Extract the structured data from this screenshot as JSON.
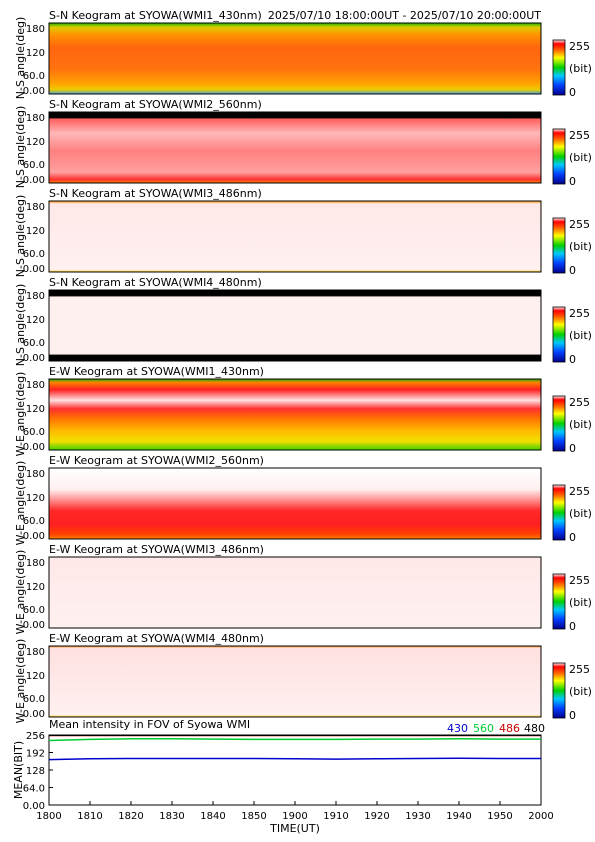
{
  "time_range": "2025/07/10 18:00:00UT - 2025/07/10 20:00:00UT",
  "colorbar": {
    "max_label": "255",
    "unit_label": "(bit)",
    "min_label": "0"
  },
  "panels": [
    {
      "title": "S-N Keogram at SYOWA(WMI1_430nm)",
      "ylabel": "N-S angle(deg)",
      "yticks": [
        "180",
        "120",
        "60.0",
        "0.00"
      ]
    },
    {
      "title": "S-N Keogram at SYOWA(WMI2_560nm)",
      "ylabel": "N-S angle(deg)",
      "yticks": [
        "180",
        "120",
        "60.0",
        "0.00"
      ]
    },
    {
      "title": "S-N Keogram at SYOWA(WMI3_486nm)",
      "ylabel": "N-S angle(deg)",
      "yticks": [
        "180",
        "120",
        "60.0",
        "0.00"
      ]
    },
    {
      "title": "S-N Keogram at SYOWA(WMI4_480nm)",
      "ylabel": "N-S angle(deg)",
      "yticks": [
        "180",
        "120",
        "60.0",
        "0.00"
      ]
    },
    {
      "title": "E-W Keogram at SYOWA(WMI1_430nm)",
      "ylabel": "W-E angle(deg)",
      "yticks": [
        "180",
        "120",
        "60.0",
        "0.00"
      ]
    },
    {
      "title": "E-W Keogram at SYOWA(WMI2_560nm)",
      "ylabel": "W-E angle(deg)",
      "yticks": [
        "180",
        "120",
        "60.0",
        "0.00"
      ]
    },
    {
      "title": "E-W Keogram at SYOWA(WMI3_486nm)",
      "ylabel": "W-E angle(deg)",
      "yticks": [
        "180",
        "120",
        "60.0",
        "0.00"
      ]
    },
    {
      "title": "E-W Keogram at SYOWA(WMI4_480nm)",
      "ylabel": "W-E angle(deg)",
      "yticks": [
        "180",
        "120",
        "60.0",
        "0.00"
      ]
    }
  ],
  "chart_data": {
    "type": "line",
    "title": "Mean intensity in FOV of Syowa WMI",
    "xlabel": "TIME(UT)",
    "ylabel": "MEAN(BIT)",
    "xticks": [
      "1800",
      "1810",
      "1820",
      "1830",
      "1840",
      "1850",
      "1900",
      "1910",
      "1920",
      "1930",
      "1940",
      "1950",
      "2000"
    ],
    "yticks": [
      "256",
      "192",
      "128",
      "64.0",
      "0.00"
    ],
    "ylim": [
      0,
      256
    ],
    "x_minutes_after_1800": [
      0,
      10,
      20,
      30,
      40,
      50,
      60,
      70,
      80,
      90,
      100,
      110,
      120
    ],
    "series": [
      {
        "name": "430",
        "color": "#0000cc",
        "values": [
          166,
          169,
          170,
          170,
          170,
          170,
          169,
          168,
          169,
          170,
          171,
          170,
          170
        ]
      },
      {
        "name": "560",
        "color": "#00cc33",
        "values": [
          236,
          240,
          242,
          242,
          241,
          240,
          240,
          240,
          241,
          241,
          242,
          241,
          241
        ]
      },
      {
        "name": "486",
        "color": "#cc0000",
        "values": [
          254,
          254,
          254,
          254,
          254,
          254,
          254,
          254,
          254,
          254,
          254,
          254,
          254
        ]
      },
      {
        "name": "480",
        "color": "#000000",
        "values": [
          255,
          255,
          255,
          255,
          255,
          255,
          255,
          255,
          255,
          255,
          255,
          255,
          255
        ]
      }
    ],
    "grid": false
  }
}
